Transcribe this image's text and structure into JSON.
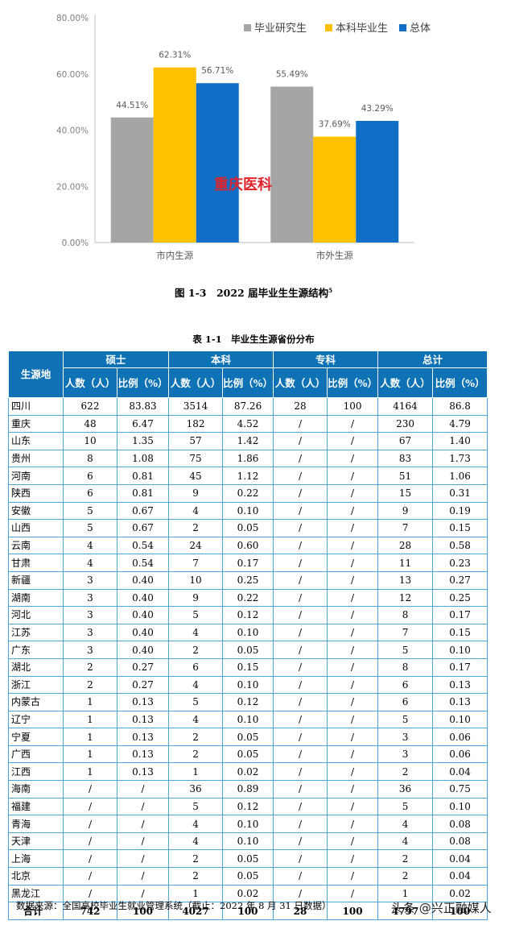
{
  "chart_data": {
    "type": "bar",
    "categories": [
      "市内生源",
      "市外生源"
    ],
    "series": [
      {
        "name": "毕业研究生",
        "values": [
          44.51,
          55.49
        ],
        "color": "#a5a5a5"
      },
      {
        "name": "本科毕业生",
        "values": [
          62.31,
          37.69
        ],
        "color": "#ffc000"
      },
      {
        "name": "总体",
        "values": [
          56.71,
          43.29
        ],
        "color": "#0f6fc6"
      }
    ],
    "value_labels": [
      [
        "44.51%",
        "55.49%"
      ],
      [
        "62.31%",
        "37.69%"
      ],
      [
        "56.71%",
        "43.29%"
      ]
    ],
    "yticks": [
      "0.00%",
      "20.00%",
      "40.00%",
      "60.00%",
      "80.00%"
    ],
    "ylim": [
      0,
      80
    ],
    "grid": false,
    "legend_position": "top-right",
    "title": "",
    "xlabel": "",
    "ylabel": ""
  },
  "watermark": "重庆医科",
  "figure_caption": {
    "text": "图 1-3　2022 届毕业生生源结构",
    "footnote": "5"
  },
  "table_caption": "表 1-1　毕业生生源省份分布",
  "table": {
    "origin_header": "生源地",
    "groups": [
      "硕士",
      "本科",
      "专科",
      "总计"
    ],
    "subheaders": [
      "人数（人）",
      "比例（%）"
    ],
    "rows": [
      [
        "四川",
        "622",
        "83.83",
        "3514",
        "87.26",
        "28",
        "100",
        "4164",
        "86.8"
      ],
      [
        "重庆",
        "48",
        "6.47",
        "182",
        "4.52",
        "/",
        "/",
        "230",
        "4.79"
      ],
      [
        "山东",
        "10",
        "1.35",
        "57",
        "1.42",
        "/",
        "/",
        "67",
        "1.40"
      ],
      [
        "贵州",
        "8",
        "1.08",
        "75",
        "1.86",
        "/",
        "/",
        "83",
        "1.73"
      ],
      [
        "河南",
        "6",
        "0.81",
        "45",
        "1.12",
        "/",
        "/",
        "51",
        "1.06"
      ],
      [
        "陕西",
        "6",
        "0.81",
        "9",
        "0.22",
        "/",
        "/",
        "15",
        "0.31"
      ],
      [
        "安徽",
        "5",
        "0.67",
        "4",
        "0.10",
        "/",
        "/",
        "9",
        "0.19"
      ],
      [
        "山西",
        "5",
        "0.67",
        "2",
        "0.05",
        "/",
        "/",
        "7",
        "0.15"
      ],
      [
        "云南",
        "4",
        "0.54",
        "24",
        "0.60",
        "/",
        "/",
        "28",
        "0.58"
      ],
      [
        "甘肃",
        "4",
        "0.54",
        "7",
        "0.17",
        "/",
        "/",
        "11",
        "0.23"
      ],
      [
        "新疆",
        "3",
        "0.40",
        "10",
        "0.25",
        "/",
        "/",
        "13",
        "0.27"
      ],
      [
        "湖南",
        "3",
        "0.40",
        "9",
        "0.22",
        "/",
        "/",
        "12",
        "0.25"
      ],
      [
        "河北",
        "3",
        "0.40",
        "5",
        "0.12",
        "/",
        "/",
        "8",
        "0.17"
      ],
      [
        "江苏",
        "3",
        "0.40",
        "4",
        "0.10",
        "/",
        "/",
        "7",
        "0.15"
      ],
      [
        "广东",
        "3",
        "0.40",
        "2",
        "0.05",
        "/",
        "/",
        "5",
        "0.10"
      ],
      [
        "湖北",
        "2",
        "0.27",
        "6",
        "0.15",
        "/",
        "/",
        "8",
        "0.17"
      ],
      [
        "浙江",
        "2",
        "0.27",
        "4",
        "0.10",
        "/",
        "/",
        "6",
        "0.13"
      ],
      [
        "内蒙古",
        "1",
        "0.13",
        "5",
        "0.12",
        "/",
        "/",
        "6",
        "0.13"
      ],
      [
        "辽宁",
        "1",
        "0.13",
        "4",
        "0.10",
        "/",
        "/",
        "5",
        "0.10"
      ],
      [
        "宁夏",
        "1",
        "0.13",
        "2",
        "0.05",
        "/",
        "/",
        "3",
        "0.06"
      ],
      [
        "广西",
        "1",
        "0.13",
        "2",
        "0.05",
        "/",
        "/",
        "3",
        "0.06"
      ],
      [
        "江西",
        "1",
        "0.13",
        "1",
        "0.02",
        "/",
        "/",
        "2",
        "0.04"
      ],
      [
        "海南",
        "/",
        "/",
        "36",
        "0.89",
        "/",
        "/",
        "36",
        "0.75"
      ],
      [
        "福建",
        "/",
        "/",
        "5",
        "0.12",
        "/",
        "/",
        "5",
        "0.10"
      ],
      [
        "青海",
        "/",
        "/",
        "4",
        "0.10",
        "/",
        "/",
        "4",
        "0.08"
      ],
      [
        "天津",
        "/",
        "/",
        "4",
        "0.10",
        "/",
        "/",
        "4",
        "0.08"
      ],
      [
        "上海",
        "/",
        "/",
        "2",
        "0.05",
        "/",
        "/",
        "2",
        "0.04"
      ],
      [
        "北京",
        "/",
        "/",
        "2",
        "0.05",
        "/",
        "/",
        "2",
        "0.04"
      ],
      [
        "黑龙江",
        "/",
        "/",
        "1",
        "0.02",
        "/",
        "/",
        "1",
        "0.02"
      ]
    ],
    "total_row": [
      "合计",
      "742",
      "100",
      "4027",
      "100",
      "28",
      "100",
      "4797",
      "100"
    ]
  },
  "source_note": "数据来源：全国高校毕业生就业管理系统（截止：2022 年 8 月 31 日数据）",
  "brand_mark": "头条 @兴正融媒人"
}
